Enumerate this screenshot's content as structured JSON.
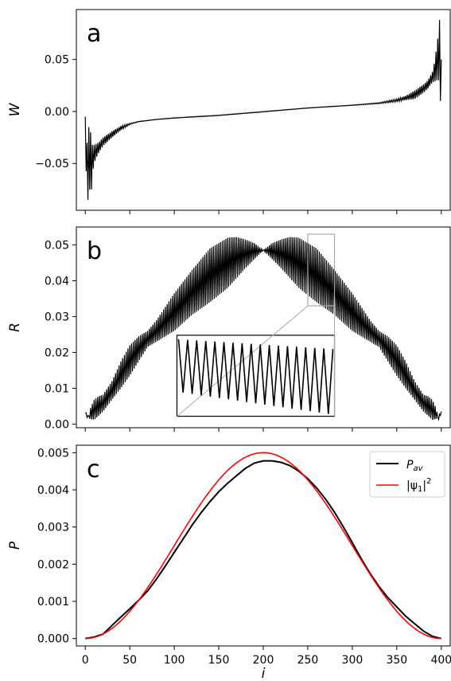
{
  "chart_data": [
    {
      "type": "line",
      "panel_label": "a",
      "ylabel": "W",
      "xlim": [
        -10,
        410
      ],
      "ylim": [
        -0.095,
        0.098
      ],
      "yticks": [
        -0.05,
        0.0,
        0.05
      ],
      "ytick_labels": [
        "−0.05",
        "0.00",
        "0.05"
      ],
      "xticks": [
        0,
        50,
        100,
        150,
        200,
        250,
        300,
        350,
        400
      ],
      "series": [
        {
          "color": "#000000",
          "envelope_upper": [
            [
              0,
              -0.005
            ],
            [
              2,
              -0.03
            ],
            [
              4,
              -0.015
            ],
            [
              6,
              -0.02
            ],
            [
              8,
              -0.032
            ],
            [
              10,
              -0.032
            ],
            [
              15,
              -0.03
            ],
            [
              20,
              -0.025
            ],
            [
              30,
              -0.019
            ],
            [
              40,
              -0.014
            ],
            [
              50,
              -0.0115
            ],
            [
              60,
              -0.0095
            ],
            [
              80,
              -0.0075
            ],
            [
              100,
              -0.006
            ],
            [
              150,
              -0.0035
            ],
            [
              200,
              0.0
            ],
            [
              250,
              0.0035
            ],
            [
              300,
              0.0062
            ],
            [
              330,
              0.0085
            ],
            [
              350,
              0.012
            ],
            [
              360,
              0.015
            ],
            [
              370,
              0.02
            ],
            [
              380,
              0.026
            ],
            [
              385,
              0.03
            ],
            [
              390,
              0.038
            ],
            [
              393,
              0.05
            ],
            [
              395,
              0.065
            ],
            [
              397,
              0.075
            ],
            [
              398,
              0.088
            ],
            [
              399,
              0.08
            ],
            [
              400,
              0.05
            ]
          ],
          "envelope_lower": [
            [
              0,
              -0.05
            ],
            [
              2,
              -0.065
            ],
            [
              3,
              -0.085
            ],
            [
              4,
              -0.06
            ],
            [
              6,
              -0.09
            ],
            [
              8,
              -0.06
            ],
            [
              10,
              -0.05
            ],
            [
              12,
              -0.045
            ],
            [
              15,
              -0.04
            ],
            [
              20,
              -0.033
            ],
            [
              30,
              -0.025
            ],
            [
              40,
              -0.018
            ],
            [
              50,
              -0.0125
            ],
            [
              60,
              -0.01
            ],
            [
              80,
              -0.0078
            ],
            [
              100,
              -0.0065
            ],
            [
              150,
              -0.004
            ],
            [
              200,
              -0.0005
            ],
            [
              250,
              0.0032
            ],
            [
              300,
              0.0058
            ],
            [
              330,
              0.0075
            ],
            [
              350,
              0.0095
            ],
            [
              360,
              0.011
            ],
            [
              370,
              0.012
            ],
            [
              380,
              0.018
            ],
            [
              385,
              0.022
            ],
            [
              390,
              0.028
            ],
            [
              395,
              0.03
            ],
            [
              397,
              0.03
            ],
            [
              398,
              0.035
            ],
            [
              399,
              0.01
            ],
            [
              400,
              0.004
            ]
          ]
        }
      ]
    },
    {
      "type": "line",
      "panel_label": "b",
      "ylabel": "R",
      "xlim": [
        -10,
        410
      ],
      "ylim": [
        -0.001,
        0.055
      ],
      "yticks": [
        0.0,
        0.01,
        0.02,
        0.03,
        0.04,
        0.05
      ],
      "ytick_labels": [
        "0.00",
        "0.01",
        "0.02",
        "0.03",
        "0.04",
        "0.05"
      ],
      "xticks": [
        0,
        50,
        100,
        150,
        200,
        250,
        300,
        350,
        400
      ],
      "envelope_A": [
        [
          0,
          0.003
        ],
        [
          3,
          0.0013
        ],
        [
          6,
          0.0045
        ],
        [
          10,
          0.0068
        ],
        [
          15,
          0.0078
        ],
        [
          20,
          0.0082
        ],
        [
          30,
          0.012
        ],
        [
          40,
          0.0175
        ],
        [
          50,
          0.022
        ],
        [
          60,
          0.0245
        ],
        [
          70,
          0.026
        ],
        [
          80,
          0.029
        ],
        [
          100,
          0.0365
        ],
        [
          120,
          0.043
        ],
        [
          140,
          0.049
        ],
        [
          160,
          0.052
        ],
        [
          170,
          0.0522
        ],
        [
          180,
          0.0515
        ],
        [
          190,
          0.0505
        ],
        [
          200,
          0.0485
        ],
        [
          220,
          0.0435
        ],
        [
          240,
          0.038
        ],
        [
          260,
          0.034
        ],
        [
          280,
          0.0305
        ],
        [
          300,
          0.026
        ],
        [
          310,
          0.0245
        ],
        [
          320,
          0.023
        ],
        [
          330,
          0.0215
        ],
        [
          340,
          0.0175
        ],
        [
          350,
          0.0135
        ],
        [
          360,
          0.01
        ],
        [
          370,
          0.0068
        ],
        [
          380,
          0.0035
        ],
        [
          390,
          0.0012
        ],
        [
          395,
          0.0015
        ],
        [
          398,
          0.0028
        ],
        [
          400,
          0.0035
        ]
      ],
      "inset": {
        "source_rect_x": [
          250,
          280
        ],
        "source_rect_y": [
          0.033,
          0.053
        ],
        "target_rect_x": [
          103,
          280
        ],
        "target_rect_y": [
          0.0022,
          0.0248
        ],
        "teeth": 17
      }
    },
    {
      "type": "line",
      "panel_label": "c",
      "xlabel": "i",
      "ylabel": "P",
      "xlim": [
        -10,
        410
      ],
      "ylim": [
        -0.0002,
        0.0052
      ],
      "yticks": [
        0.0,
        0.001,
        0.002,
        0.003,
        0.004,
        0.005
      ],
      "ytick_labels": [
        "0.000",
        "0.001",
        "0.002",
        "0.003",
        "0.004",
        "0.005"
      ],
      "xticks": [
        0,
        50,
        100,
        150,
        200,
        250,
        300,
        350,
        400
      ],
      "xtick_labels": [
        "0",
        "50",
        "100",
        "150",
        "200",
        "250",
        "300",
        "350",
        "400"
      ],
      "legend_position": "top-right",
      "series": [
        {
          "name": "P_av",
          "color": "#000000",
          "points": [
            [
              0,
              0.0
            ],
            [
              10,
              4e-05
            ],
            [
              20,
              0.00012
            ],
            [
              30,
              0.00035
            ],
            [
              40,
              0.00058
            ],
            [
              50,
              0.0008
            ],
            [
              60,
              0.00103
            ],
            [
              70,
              0.00128
            ],
            [
              80,
              0.0016
            ],
            [
              90,
              0.00195
            ],
            [
              100,
              0.00232
            ],
            [
              110,
              0.00268
            ],
            [
              120,
              0.00305
            ],
            [
              130,
              0.00338
            ],
            [
              140,
              0.00368
            ],
            [
              150,
              0.00395
            ],
            [
              160,
              0.00418
            ],
            [
              170,
              0.00438
            ],
            [
              180,
              0.00458
            ],
            [
              190,
              0.00472
            ],
            [
              200,
              0.00478
            ],
            [
              210,
              0.00478
            ],
            [
              220,
              0.00474
            ],
            [
              230,
              0.00465
            ],
            [
              240,
              0.0045
            ],
            [
              250,
              0.0043
            ],
            [
              260,
              0.00405
            ],
            [
              270,
              0.00375
            ],
            [
              280,
              0.0034
            ],
            [
              290,
              0.003
            ],
            [
              300,
              0.00258
            ],
            [
              310,
              0.00215
            ],
            [
              320,
              0.00175
            ],
            [
              330,
              0.0014
            ],
            [
              340,
              0.0011
            ],
            [
              350,
              0.00085
            ],
            [
              360,
              0.0006
            ],
            [
              370,
              0.0004
            ],
            [
              380,
              0.0002
            ],
            [
              390,
              6e-05
            ],
            [
              400,
              0.0
            ]
          ]
        },
        {
          "name": "|ψ1|²",
          "color": "#ff0000",
          "function": "0.005*sin^2(pi*x/400)",
          "x_range": [
            0,
            400
          ]
        }
      ]
    }
  ]
}
